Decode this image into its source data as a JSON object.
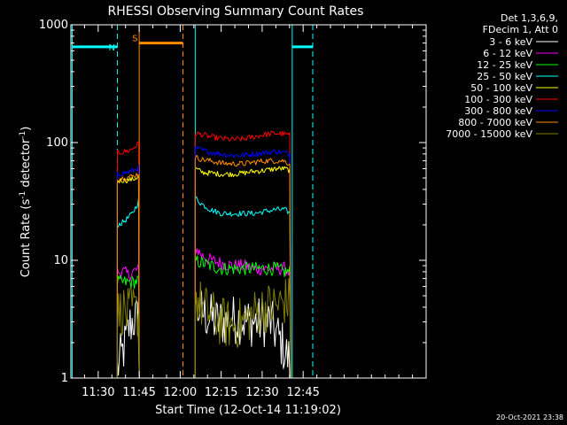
{
  "chart_data": {
    "type": "line",
    "title": "RHESSI Observing Summary Count Rates",
    "xlabel": "Start Time (12-Oct-14 11:19:02)",
    "ylabel_main": "Count Rate (s",
    "ylabel_sup1": "-1",
    "ylabel_mid": " detector",
    "ylabel_sup2": "-1",
    "ylabel_end": ")",
    "y_scale": "log",
    "ylim": [
      1,
      1000
    ],
    "xlim_min": [
      680,
      810
    ],
    "x_ticks": [
      {
        "min": 690,
        "label": "11:30"
      },
      {
        "min": 705,
        "label": "11:45"
      },
      {
        "min": 720,
        "label": "12:00"
      },
      {
        "min": 735,
        "label": "12:15"
      },
      {
        "min": 750,
        "label": "12:30"
      },
      {
        "min": 765,
        "label": "12:45"
      }
    ],
    "y_ticks": [
      {
        "value": 1,
        "label": "1"
      },
      {
        "value": 10,
        "label": "10"
      },
      {
        "value": 100,
        "label": "100"
      },
      {
        "value": 1000,
        "label": "1000"
      }
    ],
    "legend_header": [
      "Det 1,3,6,9,",
      "FDecim 1, Att 0"
    ],
    "footer_date": "20-Oct-2021 23:38",
    "series": [
      {
        "name": "3 - 6 keV",
        "color": "#ffffff",
        "segments": [
          {
            "x": [
              697.0,
              699.5,
              701.5,
              703.5,
              705.0
            ],
            "y": [
              1.2,
              1.8,
              2.8,
              3.2,
              3.0
            ]
          },
          {
            "x": [
              725.5,
              729,
              733,
              737,
              741,
              745,
              749,
              753,
              757,
              760.5
            ],
            "y": [
              4.0,
              3.5,
              3.0,
              3.0,
              3.2,
              3.0,
              3.0,
              3.0,
              2.0,
              1.3
            ]
          }
        ]
      },
      {
        "name": "6 - 12 keV",
        "color": "#ff00ff",
        "segments": [
          {
            "x": [
              697.0,
              699,
              701,
              703,
              705.0
            ],
            "y": [
              8.0,
              8.0,
              7.5,
              8.0,
              8.5
            ]
          },
          {
            "x": [
              725.5,
              728,
              731,
              735,
              739,
              743,
              747,
              751,
              755,
              758,
              760.5
            ],
            "y": [
              13,
              11,
              10,
              9.5,
              9.0,
              9.0,
              8.5,
              8.5,
              8.5,
              8.5,
              8.0
            ]
          }
        ]
      },
      {
        "name": "12 - 25 keV",
        "color": "#00ff00",
        "segments": [
          {
            "x": [
              697.0,
              699,
              701,
              703,
              705.0
            ],
            "y": [
              6.5,
              6.5,
              6.5,
              6.5,
              6.8
            ]
          },
          {
            "x": [
              725.5,
              728,
              731,
              735,
              739,
              743,
              747,
              751,
              755,
              758,
              760.5
            ],
            "y": [
              10,
              9.5,
              9.0,
              8.5,
              8.5,
              8.5,
              8.5,
              8.5,
              8.5,
              8.0,
              8.0
            ]
          }
        ]
      },
      {
        "name": "25 - 50 keV",
        "color": "#00ffff",
        "segments": [
          {
            "x": [
              697.0,
              699,
              701,
              702.5,
              704,
              705.0
            ],
            "y": [
              20,
              21,
              23,
              25,
              29,
              33
            ]
          },
          {
            "x": [
              725.5,
              728,
              731,
              735,
              739,
              743,
              747,
              751,
              755,
              758,
              760.5
            ],
            "y": [
              34,
              30,
              27,
              25,
              25,
              25,
              25,
              26,
              27,
              27,
              25
            ]
          }
        ]
      },
      {
        "name": "50 - 100 keV",
        "color": "#ffff00",
        "segments": [
          {
            "x": [
              697.0,
              699,
              701,
              703,
              705.0
            ],
            "y": [
              47,
              48,
              48,
              49,
              52
            ]
          },
          {
            "x": [
              725.5,
              728,
              731,
              735,
              739,
              743,
              747,
              751,
              755,
              758,
              760.5
            ],
            "y": [
              60,
              56,
              55,
              54,
              54,
              55,
              57,
              58,
              60,
              60,
              58
            ]
          }
        ]
      },
      {
        "name": "100 - 300 keV",
        "color": "#ff0000",
        "segments": [
          {
            "x": [
              697.0,
              699,
              701,
              703,
              704.5,
              705.0
            ],
            "y": [
              82,
              83,
              85,
              90,
              97,
              100
            ]
          },
          {
            "x": [
              725.5,
              728,
              731,
              735,
              739,
              743,
              747,
              751,
              755,
              758,
              760.5
            ],
            "y": [
              120,
              117,
              112,
              108,
              106,
              107,
              112,
              117,
              120,
              118,
              115
            ]
          }
        ]
      },
      {
        "name": "300 - 800 keV",
        "color": "#0000ff",
        "segments": [
          {
            "x": [
              697.0,
              699,
              701,
              703,
              705.0
            ],
            "y": [
              54,
              55,
              56,
              58,
              62
            ]
          },
          {
            "x": [
              725.5,
              728,
              731,
              735,
              739,
              743,
              747,
              751,
              755,
              758,
              760.5
            ],
            "y": [
              90,
              86,
              83,
              80,
              78,
              78,
              80,
              82,
              84,
              82,
              80
            ]
          }
        ]
      },
      {
        "name": "800 - 7000 keV",
        "color": "#ff8c00",
        "segments": [
          {
            "x": [
              697.0,
              699,
              701,
              703,
              705.0
            ],
            "y": [
              50,
              50,
              51,
              52,
              55
            ]
          },
          {
            "x": [
              725.5,
              728,
              731,
              735,
              739,
              743,
              747,
              751,
              755,
              758,
              760.5
            ],
            "y": [
              75,
              72,
              70,
              67,
              66,
              66,
              68,
              70,
              70,
              70,
              65
            ]
          }
        ]
      },
      {
        "name": "7000 - 15000 keV",
        "color": "#808000",
        "segments": [
          {
            "x": [
              697.0,
              699,
              701,
              703,
              705.0
            ],
            "y": [
              3.5,
              3.8,
              3.5,
              3.8,
              3.5
            ]
          },
          {
            "x": [
              725.5,
              728,
              731,
              735,
              739,
              743,
              747,
              751,
              755,
              758,
              760.5
            ],
            "y": [
              5.0,
              4.0,
              3.5,
              3.0,
              2.8,
              3.0,
              3.5,
              4.0,
              4.0,
              4.5,
              4.5
            ]
          }
        ]
      }
    ],
    "flags": [
      {
        "label": "N",
        "color": "#00ffff",
        "y_value": 650,
        "bars": [
          [
            680.5,
            697.0
          ],
          [
            761.0,
            768.5
          ]
        ],
        "solid_x": [
          680.5,
          725.5,
          761.0
        ],
        "dashed_x": [
          697.0,
          768.5
        ],
        "label_x": 695.0
      },
      {
        "label": "S",
        "color": "#ff8c00",
        "y_value": 700,
        "bars": [
          [
            705.0,
            721.0
          ]
        ],
        "solid_x": [
          705.0
        ],
        "dashed_x": [
          721.0
        ],
        "label_x": 703.5
      }
    ]
  }
}
